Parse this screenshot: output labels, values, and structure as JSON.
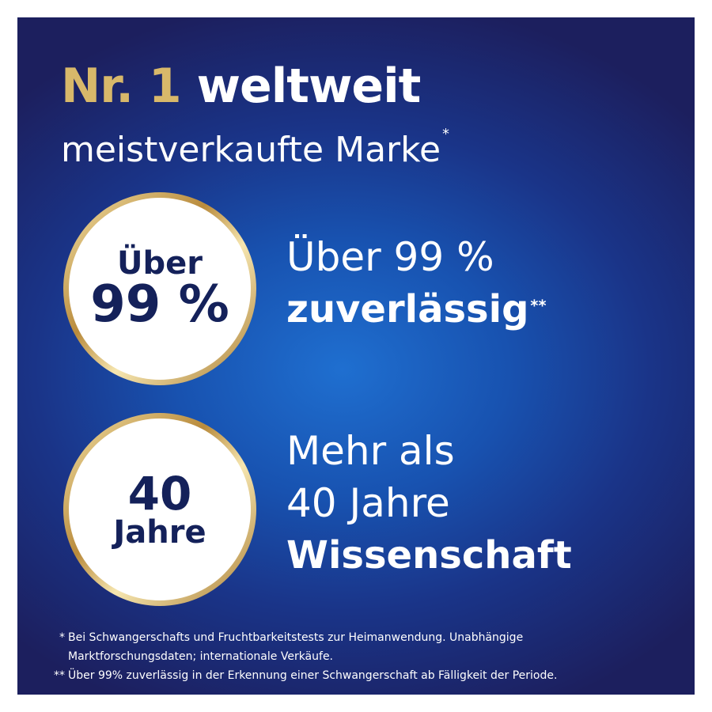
{
  "header": {
    "title_highlight": "Nr. 1",
    "title": "weltweit",
    "subtitle": "meistverkaufte Marke",
    "subtitle_mark": "*"
  },
  "badges": [
    {
      "circle_lines": [
        "Über",
        "99 %"
      ],
      "text_lines": [
        "Über 99 %"
      ],
      "text_bold": "zuverlässig",
      "text_mark": "**"
    },
    {
      "circle_lines": [
        "40",
        "Jahre"
      ],
      "text_lines": [
        "Mehr als",
        "40 Jahre"
      ],
      "text_bold": "Wissenschaft",
      "text_mark": null
    }
  ],
  "footnotes": [
    {
      "mark": "*",
      "lines": [
        "Bei Schwangerschafts und Fruchtbarkeitstests zur Heimanwendung. Unabhängige",
        "Marktforschungsdaten; internationale Verkäufe."
      ]
    },
    {
      "mark": "**",
      "lines": [
        "Über 99% zuverlässig in der Erkennung einer Schwangerschaft ab Fälligkeit der Periode."
      ]
    }
  ]
}
